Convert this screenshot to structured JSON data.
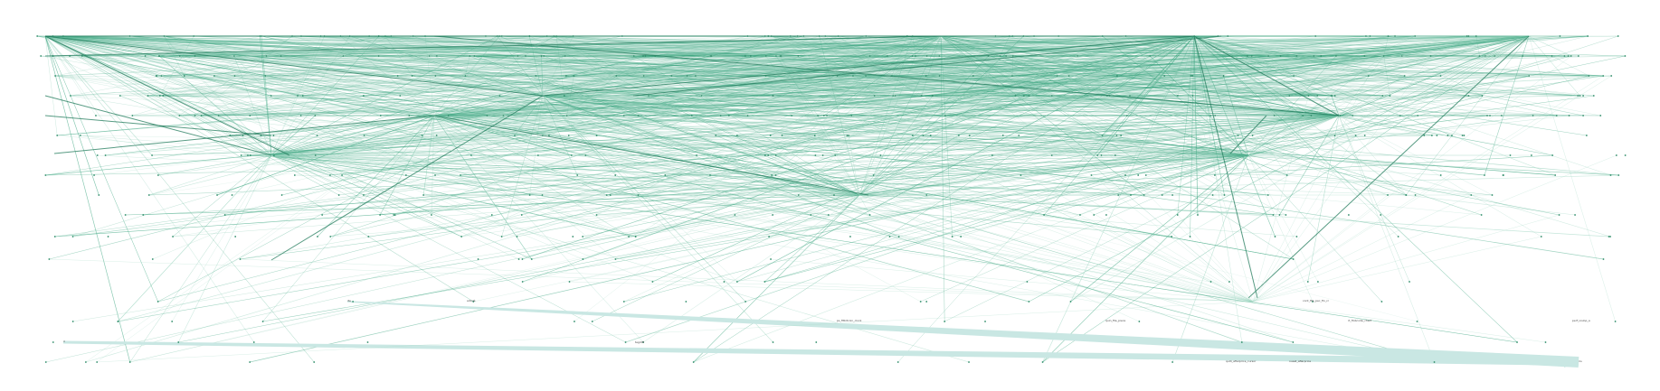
{
  "diagram": {
    "type": "dependency-graph",
    "colors": {
      "edge_dark": "#1f7a5a",
      "edge_mid": "#3aa57f",
      "edge_light": "#9fd6c2",
      "edge_pale": "#c9e7e3",
      "node": "#2a8a66"
    },
    "label_short": "ite",
    "label_cluster": "arbolé",
    "label_bottom_left": "ri",
    "label_bottom_right": "ris",
    "label_mid": "tegdiff",
    "label_bottom_a": "quiti_aflarprice_cursor",
    "label_bottom_b": "ouest_aflarprice",
    "label_b1": "ps_fitbitcoin_clock",
    "label_b2": "quin_file_piece",
    "label_b3": "rt_flobcode_chart",
    "label_b4": "perf_ioslop_a",
    "label_b5": "cont_file_pec_fin_rc"
  }
}
